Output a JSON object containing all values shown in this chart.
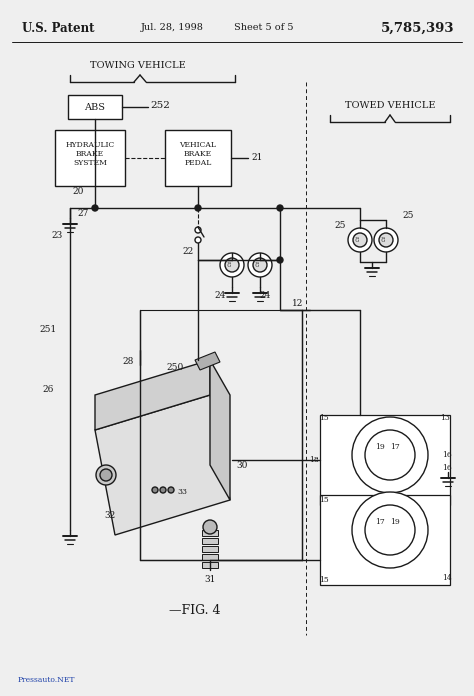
{
  "bg_color": "#efefef",
  "line_color": "#1a1a1a",
  "header_left": "U.S. Patent",
  "header_mid1": "Jul. 28, 1998",
  "header_mid2": "Sheet 5 of 5",
  "header_right": "5,785,393",
  "towing_label": "TOWING VEHICLE",
  "towed_label": "TOWED VEHICLE",
  "fig_label": "—FIG. 4",
  "watermark": "Pressauto.NET",
  "abs_label": "ABS",
  "n252": "252",
  "hbs1": "HYDRAULIC",
  "hbs2": "BRAKE",
  "hbs3": "SYSTEM",
  "vbp1": "VEHICAL",
  "vbp2": "BRAKE",
  "vbp3": "PEDAL",
  "n20": "20",
  "n21": "21",
  "n22": "22",
  "n23": "23",
  "n24a": "24",
  "n24b": "24",
  "n25a": "25",
  "n25b": "25",
  "n26": "26",
  "n27": "27",
  "n28": "28",
  "n30": "30",
  "n31": "31",
  "n32": "32",
  "n33": "33",
  "n12": "12",
  "n250": "250",
  "n251": "251",
  "n13": "13",
  "n14": "14",
  "n15a": "15",
  "n15b": "15",
  "n15c": "15",
  "n16a": "16",
  "n16b": "16",
  "n17a": "17",
  "n17b": "17",
  "n18": "18",
  "n19a": "19",
  "n19b": "19"
}
